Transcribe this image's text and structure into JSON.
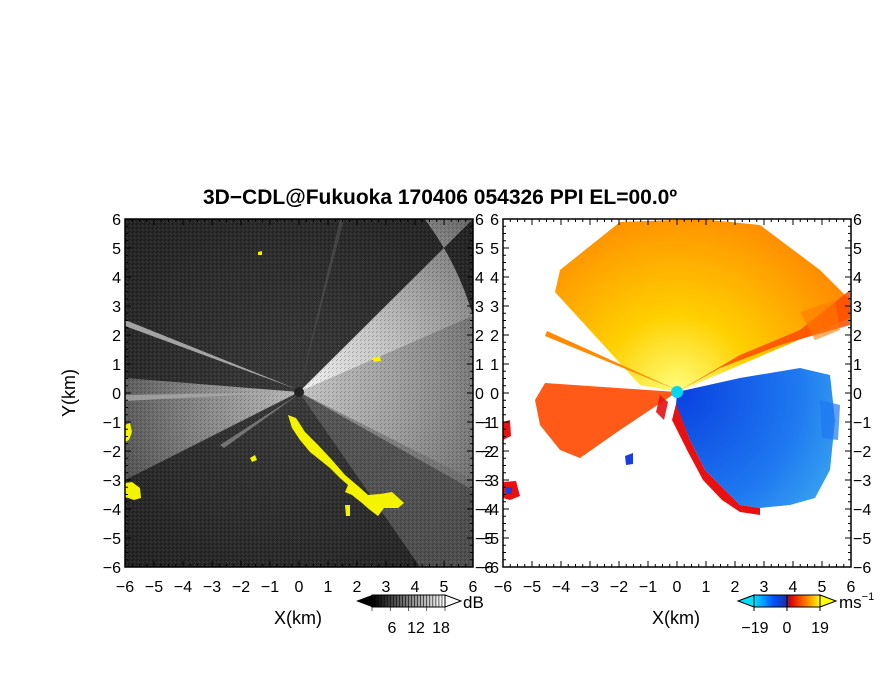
{
  "figure": {
    "title": "3D−CDL@Fukuoka 170406 054326 PPI EL=00.0º"
  },
  "chart_data": [
    {
      "type": "heatmap",
      "panel": "left",
      "quantity": "reflectivity",
      "title": "",
      "xlabel": "X(km)",
      "ylabel": "Y(km)",
      "xlim": [
        -6,
        6
      ],
      "ylim": [
        -6,
        6
      ],
      "x_ticks": [
        "−6",
        "−5",
        "−4",
        "−3",
        "−2",
        "−1",
        "0",
        "1",
        "2",
        "3",
        "4",
        "5",
        "6"
      ],
      "y_ticks": [
        "6",
        "5",
        "4",
        "3",
        "2",
        "1",
        "0",
        "−1",
        "−2",
        "−3",
        "−4",
        "−5",
        "−6"
      ],
      "colorbar": {
        "label": "dB",
        "ticks": [
          "6",
          "12",
          "18"
        ],
        "range": [
          0,
          24
        ],
        "colormap": "black-to-white",
        "clutter_color": "#ffff00"
      },
      "radar_center": [
        0,
        0
      ],
      "bright_sector_deg": [
        -25,
        100
      ],
      "bright_beams_deg": [
        163,
        180,
        207
      ],
      "clutter_regions": [
        "left edge x≈−6, y≈−1 to −2.5",
        "left edge x≈−6, y≈−3.5",
        "arc from (−0.3,−0.8) to (3.5,−4)"
      ]
    },
    {
      "type": "heatmap",
      "panel": "right",
      "quantity": "Doppler velocity",
      "title": "",
      "xlabel": "X(km)",
      "ylabel": "",
      "xlim": [
        -6,
        6
      ],
      "ylim": [
        -6,
        6
      ],
      "x_ticks": [
        "−6",
        "−5",
        "−4",
        "−3",
        "−2",
        "−1",
        "0",
        "1",
        "2",
        "3",
        "4",
        "5",
        "6"
      ],
      "y_ticks": [
        "6",
        "5",
        "4",
        "3",
        "2",
        "1",
        "0",
        "−1",
        "−2",
        "−3",
        "−4",
        "−5",
        "−6"
      ],
      "colorbar": {
        "label": "ms",
        "label_exponent": "−1",
        "ticks": [
          "−19",
          "0",
          "19"
        ],
        "range": [
          -19,
          19
        ],
        "colormap": "cyan-blue-red-orange-yellow"
      },
      "radar_center": [
        0,
        0
      ],
      "sectors": [
        {
          "from_deg": 25,
          "to_deg": 100,
          "sign": "positive",
          "color": "#ffc000"
        },
        {
          "from_deg": -25,
          "to_deg": 25,
          "sign": "positive",
          "color": "#ff5500"
        },
        {
          "from_deg": 175,
          "to_deg": 195,
          "sign": "positive",
          "color": "#ff5a10"
        },
        {
          "from_deg": -75,
          "to_deg": -5,
          "sign": "negative",
          "color": "#1870e8"
        }
      ]
    }
  ]
}
